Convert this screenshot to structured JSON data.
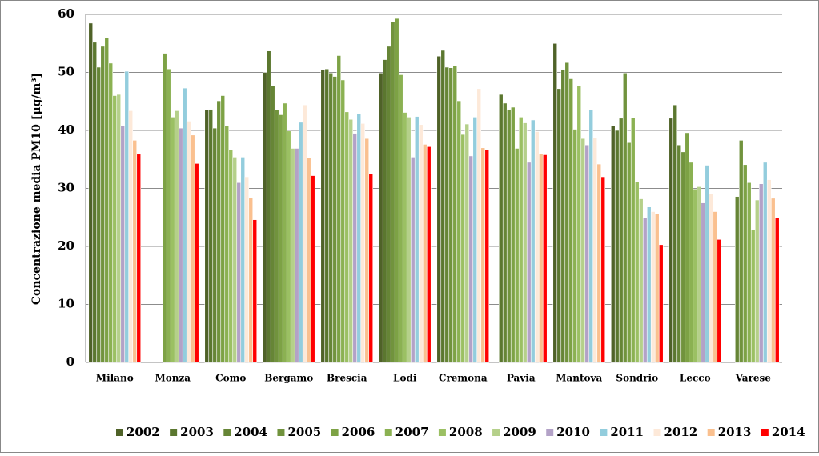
{
  "chart_data": {
    "type": "bar",
    "y_label": "Concentrazione media PM10 [µg/m³]",
    "categories": [
      "Milano",
      "Monza",
      "Como",
      "Bergamo",
      "Brescia",
      "Lodi",
      "Cremona",
      "Pavia",
      "Mantova",
      "Sondrio",
      "Lecco",
      "Varese"
    ],
    "series": [
      {
        "name": "2002",
        "color": "#4f6228",
        "values": [
          58.5,
          null,
          43.5,
          50.0,
          50.5,
          49.9,
          52.8,
          null,
          55.0,
          40.8,
          42.1,
          null
        ]
      },
      {
        "name": "2003",
        "color": "#5b772f",
        "values": [
          55.2,
          null,
          43.6,
          53.7,
          50.6,
          52.2,
          53.8,
          46.2,
          47.2,
          40.0,
          44.4,
          null
        ]
      },
      {
        "name": "2004",
        "color": "#668536",
        "values": [
          50.9,
          null,
          40.4,
          47.7,
          49.9,
          54.5,
          50.9,
          44.7,
          50.5,
          42.1,
          37.5,
          28.6
        ]
      },
      {
        "name": "2005",
        "color": "#71933d",
        "values": [
          54.5,
          null,
          45.1,
          43.5,
          49.3,
          58.8,
          50.8,
          43.6,
          51.7,
          49.9,
          36.3,
          38.3
        ]
      },
      {
        "name": "2006",
        "color": "#7da245",
        "values": [
          56.0,
          53.3,
          46.0,
          42.7,
          52.9,
          59.3,
          51.1,
          44.0,
          48.9,
          37.9,
          39.6,
          34.1
        ]
      },
      {
        "name": "2007",
        "color": "#8bb152",
        "values": [
          51.6,
          50.6,
          40.8,
          44.7,
          48.7,
          49.6,
          45.1,
          36.9,
          40.2,
          42.2,
          34.5,
          31.0
        ]
      },
      {
        "name": "2008",
        "color": "#9bc063",
        "values": [
          46.0,
          42.3,
          36.6,
          39.9,
          43.2,
          43.1,
          39.3,
          42.3,
          47.7,
          31.1,
          29.9,
          22.9
        ]
      },
      {
        "name": "2009",
        "color": "#b5d08a",
        "values": [
          46.2,
          43.4,
          35.4,
          36.9,
          41.9,
          42.3,
          41.1,
          41.3,
          38.6,
          28.2,
          30.3,
          28.0
        ]
      },
      {
        "name": "2010",
        "color": "#b3a2c7",
        "values": [
          40.8,
          40.4,
          31.0,
          36.9,
          39.5,
          35.4,
          35.6,
          34.5,
          37.5,
          25.0,
          27.5,
          30.8
        ]
      },
      {
        "name": "2011",
        "color": "#93cddd",
        "values": [
          50.2,
          47.3,
          35.4,
          41.4,
          42.8,
          42.4,
          42.3,
          41.8,
          43.5,
          26.8,
          34.0,
          34.5
        ]
      },
      {
        "name": "2012",
        "color": "#fde9d9",
        "values": [
          43.4,
          41.6,
          32.0,
          44.4,
          41.2,
          41.0,
          47.2,
          39.8,
          38.7,
          26.0,
          29.1,
          31.5
        ]
      },
      {
        "name": "2013",
        "color": "#fac08f",
        "values": [
          38.3,
          39.2,
          28.4,
          35.3,
          38.6,
          37.6,
          37.0,
          36.0,
          34.2,
          25.6,
          26.0,
          28.3
        ]
      },
      {
        "name": "2014",
        "color": "#ff0000",
        "values": [
          35.9,
          34.3,
          24.6,
          32.2,
          32.5,
          37.2,
          36.6,
          35.8,
          32.0,
          20.3,
          21.2,
          24.9
        ]
      }
    ],
    "ylim": [
      0,
      60
    ],
    "yticks": [
      0,
      10,
      20,
      30,
      40,
      50,
      60
    ],
    "grid": true,
    "legend": "bottom"
  }
}
